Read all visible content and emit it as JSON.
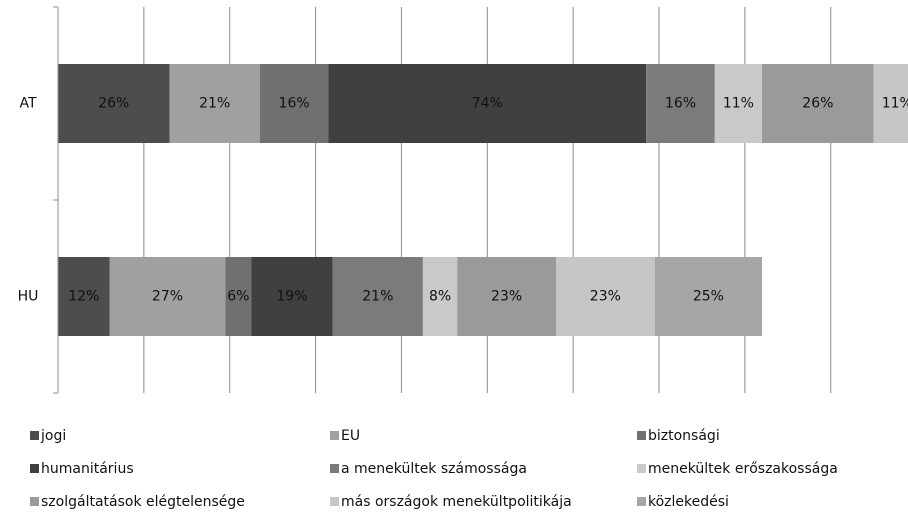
{
  "chart_data": {
    "type": "stacked-bar-horizontal",
    "categories": [
      "AT",
      "HU"
    ],
    "xlim": [
      0,
      198
    ],
    "xticks": [
      0,
      20,
      40,
      60,
      80,
      100,
      120,
      140,
      160,
      180
    ],
    "grid": true,
    "series": [
      {
        "name": "jogi",
        "color": "#4d4d4d",
        "values": [
          26,
          12
        ],
        "value_labels": [
          "26%",
          "12%"
        ]
      },
      {
        "name": "EU",
        "color": "#a0a0a0",
        "values": [
          21,
          27
        ],
        "value_labels": [
          "21%",
          "27%"
        ]
      },
      {
        "name": "biztonsági",
        "color": "#707070",
        "values": [
          16,
          6
        ],
        "value_labels": [
          "16%",
          "6%"
        ]
      },
      {
        "name": "humanitárius",
        "color": "#404040",
        "values": [
          74,
          19
        ],
        "value_labels": [
          "74%",
          "19%"
        ]
      },
      {
        "name": "a menekültek számossága",
        "color": "#7b7b7b",
        "values": [
          16,
          21
        ],
        "value_labels": [
          "16%",
          "21%"
        ]
      },
      {
        "name": "menekültek erőszakossága",
        "color": "#c9c9c9",
        "values": [
          11,
          8
        ],
        "value_labels": [
          "11%",
          "8%"
        ]
      },
      {
        "name": "szolgáltatások elégtelensége",
        "color": "#9a9a9a",
        "values": [
          26,
          23
        ],
        "value_labels": [
          "26%",
          "23%"
        ]
      },
      {
        "name": "más országok menekültpolitikája",
        "color": "#c6c6c6",
        "values": [
          11,
          23
        ],
        "value_labels": [
          "11%",
          "23%"
        ]
      },
      {
        "name": "közlekedési",
        "color": "#a6a6a6",
        "values": [
          null,
          25
        ],
        "value_labels": [
          null,
          "25%"
        ]
      }
    ]
  }
}
